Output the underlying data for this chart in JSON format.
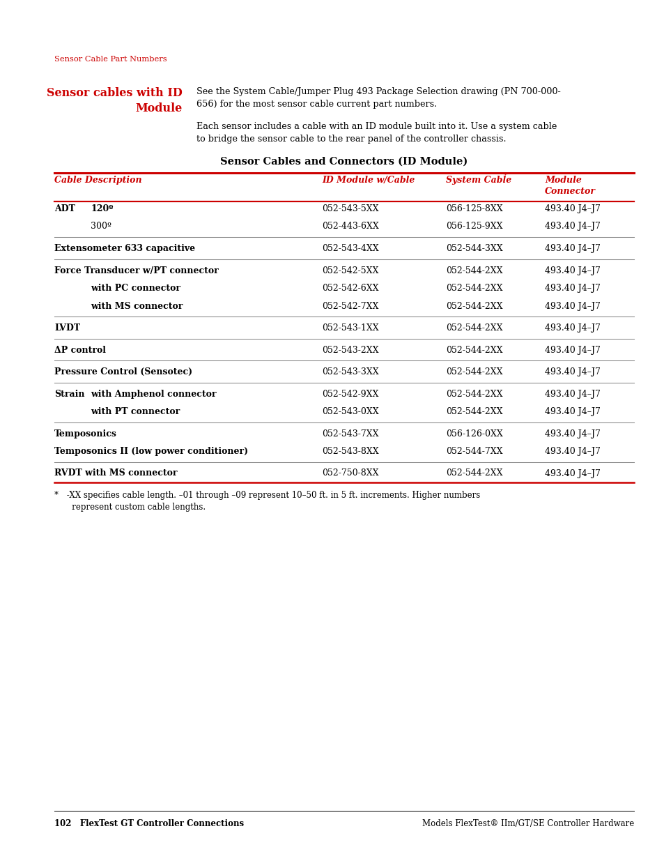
{
  "page_bg": "#ffffff",
  "red_color": "#cc0000",
  "black_color": "#000000",
  "section_label": "Sensor Cable Part Numbers",
  "para1": "See the System Cable/Jumper Plug 493 Package Selection drawing (PN 700-000-\n656) for the most sensor cable current part numbers.",
  "para2": "Each sensor includes a cable with an ID module built into it. Use a system cable\nto bridge the sensor cable to the rear panel of the controller chassis.",
  "table_title": "Sensor Cables and Connectors (ID Module)",
  "footer_left": "102   FlexTest GT Controller Connections",
  "footer_right": "Models FlexTest® IIm/GT/SE Controller Hardware",
  "rows": [
    {
      "col0": "ADT",
      "col0b": "120º",
      "col1": "052-543-5XX",
      "col2": "056-125-8XX",
      "col3": "493.40 J4–J7",
      "bold": true,
      "indent": false,
      "sep_after": false
    },
    {
      "col0": "",
      "col0b": "300º",
      "col1": "052-443-6XX",
      "col2": "056-125-9XX",
      "col3": "493.40 J4–J7",
      "bold": false,
      "indent": true,
      "sep_after": true
    },
    {
      "col0": "Extensometer 633 capacitive",
      "col0b": "",
      "col1": "052-543-4XX",
      "col2": "052-544-3XX",
      "col3": "493.40 J4–J7",
      "bold": true,
      "indent": false,
      "sep_after": true
    },
    {
      "col0": "Force Transducer w/PT connector",
      "col0b": "",
      "col1": "052-542-5XX",
      "col2": "052-544-2XX",
      "col3": "493.40 J4–J7",
      "bold": true,
      "indent": false,
      "sep_after": false
    },
    {
      "col0": "with PC connector",
      "col0b": "",
      "col1": "052-542-6XX",
      "col2": "052-544-2XX",
      "col3": "493.40 J4–J7",
      "bold": true,
      "indent": true,
      "sep_after": false
    },
    {
      "col0": "with MS connector",
      "col0b": "",
      "col1": "052-542-7XX",
      "col2": "052-544-2XX",
      "col3": "493.40 J4–J7",
      "bold": true,
      "indent": true,
      "sep_after": true
    },
    {
      "col0": "LVDT",
      "col0b": "",
      "col1": "052-543-1XX",
      "col2": "052-544-2XX",
      "col3": "493.40 J4–J7",
      "bold": true,
      "indent": false,
      "sep_after": true
    },
    {
      "col0": "ΔP control",
      "col0b": "",
      "col1": "052-543-2XX",
      "col2": "052-544-2XX",
      "col3": "493.40 J4–J7",
      "bold": true,
      "indent": false,
      "sep_after": true
    },
    {
      "col0": "Pressure Control (Sensotec)",
      "col0b": "",
      "col1": "052-543-3XX",
      "col2": "052-544-2XX",
      "col3": "493.40 J4–J7",
      "bold": true,
      "indent": false,
      "sep_after": true
    },
    {
      "col0": "Strain",
      "col0b": "with Amphenol connector",
      "col1": "052-542-9XX",
      "col2": "052-544-2XX",
      "col3": "493.40 J4–J7",
      "bold": true,
      "indent": false,
      "sep_after": false
    },
    {
      "col0": "",
      "col0b": "with PT connector",
      "col1": "052-543-0XX",
      "col2": "052-544-2XX",
      "col3": "493.40 J4–J7",
      "bold": true,
      "indent": true,
      "sep_after": true
    },
    {
      "col0": "Temposonics",
      "col0b": "",
      "col1": "052-543-7XX",
      "col2": "056-126-0XX",
      "col3": "493.40 J4–J7",
      "bold": true,
      "indent": false,
      "sep_after": false
    },
    {
      "col0": "Temposonics II (low power conditioner)",
      "col0b": "",
      "col1": "052-543-8XX",
      "col2": "052-544-7XX",
      "col3": "493.40 J4–J7",
      "bold": true,
      "indent": false,
      "sep_after": true
    },
    {
      "col0": "RVDT with MS connector",
      "col0b": "",
      "col1": "052-750-8XX",
      "col2": "052-544-2XX",
      "col3": "493.40 J4–J7",
      "bold": true,
      "indent": false,
      "sep_after": false
    }
  ],
  "footnote_star": "*",
  "footnote_text": " -XX specifies cable length. –01 through –09 represent 10–50 ft. in 5 ft. increments. Higher numbers\n   represent custom cable lengths."
}
